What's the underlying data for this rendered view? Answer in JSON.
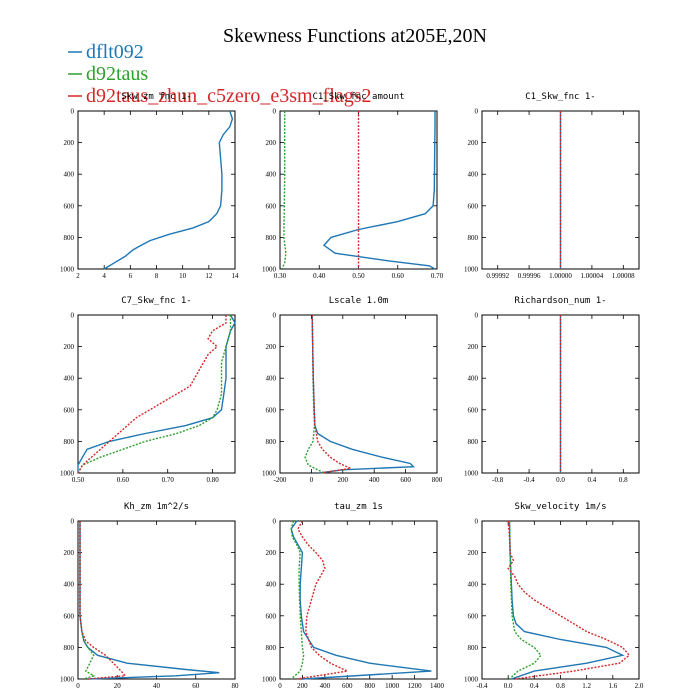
{
  "title": "Skewness Functions at205E,20N",
  "legend": [
    {
      "name": "dflt092",
      "color": "#1f77b4"
    },
    {
      "name": "d92taus",
      "color": "#2ca02c"
    },
    {
      "name": "d92taus_zhun_c5zero_e3sm_flags2",
      "color": "#d62728"
    }
  ],
  "chart_data": [
    {
      "type": "line",
      "title": "Skw_zm fnc 1-",
      "xlim": [
        2,
        14
      ],
      "ylim": [
        1000,
        0
      ],
      "xticks": [
        "2",
        "4",
        "6",
        "8",
        "10",
        "12",
        "14"
      ],
      "yticks": [
        "0",
        "200",
        "400",
        "600",
        "800",
        "1000"
      ],
      "series": [
        {
          "name": "dflt092",
          "y": [
            0,
            50,
            100,
            150,
            200,
            300,
            400,
            500,
            600,
            650,
            700,
            740,
            780,
            820,
            860,
            880,
            920,
            960,
            1000
          ],
          "x": [
            13.6,
            13.8,
            13.6,
            13.1,
            12.8,
            12.9,
            13.0,
            13.0,
            12.9,
            12.6,
            12.0,
            10.8,
            9.0,
            7.5,
            6.6,
            6.2,
            5.6,
            4.8,
            4.0
          ]
        }
      ]
    },
    {
      "type": "line",
      "title": "C1_Skw_fnc amount",
      "xlim": [
        0.3,
        0.7
      ],
      "ylim": [
        1000,
        0
      ],
      "xticks": [
        "0.30",
        "0.40",
        "0.50",
        "0.60",
        "0.70"
      ],
      "yticks": [
        "0",
        "200",
        "400",
        "600",
        "800",
        "1000"
      ],
      "series": [
        {
          "name": "dflt092",
          "y": [
            0,
            100,
            300,
            500,
            600,
            650,
            700,
            750,
            800,
            850,
            900,
            950,
            980,
            1000
          ],
          "x": [
            0.695,
            0.695,
            0.694,
            0.693,
            0.69,
            0.67,
            0.6,
            0.5,
            0.43,
            0.412,
            0.44,
            0.58,
            0.68,
            0.695
          ]
        },
        {
          "name": "d92taus",
          "y": [
            0,
            200,
            400,
            600,
            800,
            900,
            960,
            1000
          ],
          "x": [
            0.312,
            0.312,
            0.312,
            0.311,
            0.31,
            0.315,
            0.312,
            0.305
          ]
        },
        {
          "name": "d92taus_zhun_c5zero_e3sm_flags2",
          "y": [
            0,
            1000
          ],
          "x": [
            0.5,
            0.5
          ]
        }
      ]
    },
    {
      "type": "line",
      "title": "C1_Skw_fnc 1-",
      "xlim": [
        0.9999,
        1.0001
      ],
      "ylim": [
        1000,
        0
      ],
      "xticks": [
        "0.99992",
        "0.99996",
        "1.00000",
        "1.00004",
        "1.00008"
      ],
      "yticks": [
        "0",
        "200",
        "400",
        "600",
        "800",
        "1000"
      ],
      "series": [
        {
          "name": "dflt092",
          "y": [
            0,
            1000
          ],
          "x": [
            1.0,
            1.0
          ]
        },
        {
          "name": "d92taus_zhun_c5zero_e3sm_flags2",
          "y": [
            0,
            1000
          ],
          "x": [
            1.0,
            1.0
          ]
        }
      ]
    },
    {
      "type": "line",
      "title": "C7_Skw_fnc 1-",
      "xlim": [
        0.5,
        0.85
      ],
      "ylim": [
        1000,
        0
      ],
      "xticks": [
        "0.50",
        "0.60",
        "0.70",
        "0.80"
      ],
      "yticks": [
        "0",
        "200",
        "400",
        "600",
        "800",
        "1000"
      ],
      "series": [
        {
          "name": "dflt092",
          "y": [
            0,
            50,
            100,
            200,
            300,
            400,
            500,
            600,
            650,
            700,
            750,
            800,
            850,
            900,
            950,
            1000
          ],
          "x": [
            0.84,
            0.85,
            0.84,
            0.83,
            0.83,
            0.83,
            0.825,
            0.82,
            0.8,
            0.74,
            0.65,
            0.57,
            0.52,
            0.51,
            0.5,
            0.5
          ]
        },
        {
          "name": "d92taus",
          "y": [
            0,
            100,
            200,
            300,
            400,
            500,
            600,
            650,
            700,
            750,
            800,
            850,
            900,
            950,
            1000
          ],
          "x": [
            0.84,
            0.84,
            0.83,
            0.82,
            0.82,
            0.82,
            0.81,
            0.8,
            0.77,
            0.72,
            0.65,
            0.6,
            0.55,
            0.51,
            0.5
          ]
        },
        {
          "name": "d92taus_zhun_c5zero_e3sm_flags2",
          "y": [
            0,
            50,
            100,
            150,
            200,
            250,
            300,
            350,
            400,
            450,
            500,
            550,
            600,
            650,
            700,
            750,
            800,
            850,
            900,
            950,
            1000
          ],
          "x": [
            0.83,
            0.83,
            0.8,
            0.79,
            0.81,
            0.79,
            0.78,
            0.77,
            0.76,
            0.75,
            0.72,
            0.69,
            0.66,
            0.63,
            0.61,
            0.59,
            0.57,
            0.55,
            0.53,
            0.51,
            0.5
          ]
        }
      ]
    },
    {
      "type": "line",
      "title": "Lscale 1.0m",
      "xlim": [
        -200,
        800
      ],
      "ylim": [
        1000,
        0
      ],
      "xticks": [
        "-200",
        "0",
        "200",
        "400",
        "600",
        "800"
      ],
      "yticks": [
        "0",
        "200",
        "400",
        "600",
        "800",
        "1000"
      ],
      "series": [
        {
          "name": "dflt092",
          "y": [
            0,
            200,
            400,
            600,
            700,
            750,
            800,
            850,
            900,
            940,
            960,
            980,
            1000
          ],
          "x": [
            5,
            8,
            12,
            18,
            22,
            40,
            120,
            260,
            450,
            630,
            650,
            200,
            50
          ]
        },
        {
          "name": "d92taus",
          "y": [
            0,
            200,
            400,
            600,
            700,
            800,
            850,
            900,
            950,
            980,
            1000
          ],
          "x": [
            5,
            8,
            10,
            15,
            20,
            10,
            -20,
            -40,
            -20,
            40,
            80
          ]
        },
        {
          "name": "d92taus_zhun_c5zero_e3sm_flags2",
          "y": [
            0,
            200,
            400,
            600,
            700,
            800,
            850,
            900,
            940,
            970,
            1000
          ],
          "x": [
            5,
            8,
            12,
            18,
            22,
            40,
            70,
            120,
            180,
            250,
            60
          ]
        }
      ]
    },
    {
      "type": "line",
      "title": "Richardson_num 1-",
      "xlim": [
        -1,
        1
      ],
      "ylim": [
        1000,
        0
      ],
      "xticks": [
        "-0.8",
        "-0.4",
        "0.0",
        "0.4",
        "0.8"
      ],
      "yticks": [
        "0",
        "200",
        "400",
        "600",
        "800",
        "1000"
      ],
      "series": [
        {
          "name": "dflt092",
          "y": [
            0,
            1000
          ],
          "x": [
            0,
            0
          ]
        },
        {
          "name": "d92taus_zhun_c5zero_e3sm_flags2",
          "y": [
            0,
            1000
          ],
          "x": [
            0,
            0
          ]
        }
      ]
    },
    {
      "type": "line",
      "title": "Kh_zm 1m^2/s",
      "xlim": [
        0,
        80
      ],
      "ylim": [
        1000,
        0
      ],
      "xticks": [
        "0",
        "20",
        "40",
        "60",
        "80"
      ],
      "yticks": [
        "0",
        "200",
        "400",
        "600",
        "800",
        "1000"
      ],
      "series": [
        {
          "name": "dflt092",
          "y": [
            0,
            200,
            400,
            600,
            700,
            760,
            800,
            850,
            900,
            940,
            960,
            980,
            1000
          ],
          "x": [
            1,
            1,
            1,
            1,
            2,
            3,
            5,
            10,
            25,
            55,
            72,
            50,
            5
          ]
        },
        {
          "name": "d92taus",
          "y": [
            0,
            200,
            400,
            600,
            700,
            760,
            800,
            850,
            900,
            950,
            980,
            1000
          ],
          "x": [
            1,
            1,
            1,
            1,
            2,
            3,
            5,
            8,
            6,
            4,
            8,
            3
          ]
        },
        {
          "name": "d92taus_zhun_c5zero_e3sm_flags2",
          "y": [
            0,
            200,
            400,
            600,
            700,
            760,
            800,
            850,
            900,
            950,
            980,
            1000
          ],
          "x": [
            1,
            1,
            1,
            1,
            2,
            4,
            8,
            14,
            18,
            22,
            24,
            5
          ]
        }
      ]
    },
    {
      "type": "line",
      "title": "tau_zm 1s",
      "xlim": [
        0,
        1400
      ],
      "ylim": [
        1000,
        0
      ],
      "xticks": [
        "0",
        "200",
        "400",
        "600",
        "800",
        "1000",
        "1200",
        "1400"
      ],
      "yticks": [
        "0",
        "200",
        "400",
        "600",
        "800",
        "1000"
      ],
      "series": [
        {
          "name": "dflt092",
          "y": [
            0,
            50,
            100,
            150,
            200,
            300,
            400,
            500,
            600,
            700,
            800,
            850,
            900,
            950,
            1000
          ],
          "x": [
            150,
            100,
            120,
            160,
            200,
            190,
            180,
            180,
            190,
            210,
            300,
            500,
            800,
            1350,
            200
          ]
        },
        {
          "name": "d92taus",
          "y": [
            0,
            50,
            100,
            150,
            200,
            300,
            400,
            500,
            600,
            700,
            800,
            850,
            900,
            950,
            1000
          ],
          "x": [
            120,
            100,
            110,
            150,
            180,
            170,
            170,
            175,
            180,
            190,
            200,
            210,
            200,
            180,
            100
          ]
        },
        {
          "name": "d92taus_zhun_c5zero_e3sm_flags2",
          "y": [
            0,
            50,
            100,
            150,
            200,
            250,
            300,
            350,
            400,
            500,
            600,
            700,
            800,
            850,
            900,
            950,
            1000
          ],
          "x": [
            200,
            160,
            200,
            250,
            320,
            380,
            400,
            360,
            320,
            280,
            240,
            230,
            280,
            350,
            450,
            600,
            150
          ]
        }
      ]
    },
    {
      "type": "line",
      "title": "Skw_velocity 1m/s",
      "xlim": [
        -0.4,
        2.0
      ],
      "ylim": [
        1000,
        0
      ],
      "xticks": [
        "-0.4",
        "0.0",
        "0.4",
        "0.8",
        "1.2",
        "1.6",
        "2.0"
      ],
      "yticks": [
        "0",
        "200",
        "400",
        "600",
        "800",
        "1000"
      ],
      "series": [
        {
          "name": "dflt092",
          "y": [
            0,
            200,
            400,
            500,
            600,
            650,
            700,
            750,
            800,
            850,
            900,
            950,
            1000
          ],
          "x": [
            0.02,
            0.03,
            0.05,
            0.06,
            0.08,
            0.12,
            0.25,
            0.8,
            1.5,
            1.75,
            1.2,
            0.4,
            0.05
          ]
        },
        {
          "name": "d92taus",
          "y": [
            0,
            200,
            400,
            600,
            700,
            750,
            800,
            850,
            900,
            950,
            1000
          ],
          "x": [
            0.02,
            0.03,
            0.04,
            0.06,
            0.1,
            0.2,
            0.4,
            0.5,
            0.4,
            0.15,
            0.02
          ]
        },
        {
          "name": "d92taus_zhun_c5zero_e3sm_flags2",
          "y": [
            0,
            100,
            200,
            250,
            300,
            350,
            400,
            450,
            500,
            550,
            600,
            650,
            700,
            750,
            800,
            850,
            900,
            950,
            1000
          ],
          "x": [
            0.0,
            0.02,
            0.03,
            0.08,
            0.0,
            0.1,
            0.15,
            0.25,
            0.4,
            0.6,
            0.8,
            1.0,
            1.2,
            1.5,
            1.75,
            1.85,
            1.7,
            1.0,
            0.1
          ]
        }
      ]
    }
  ]
}
